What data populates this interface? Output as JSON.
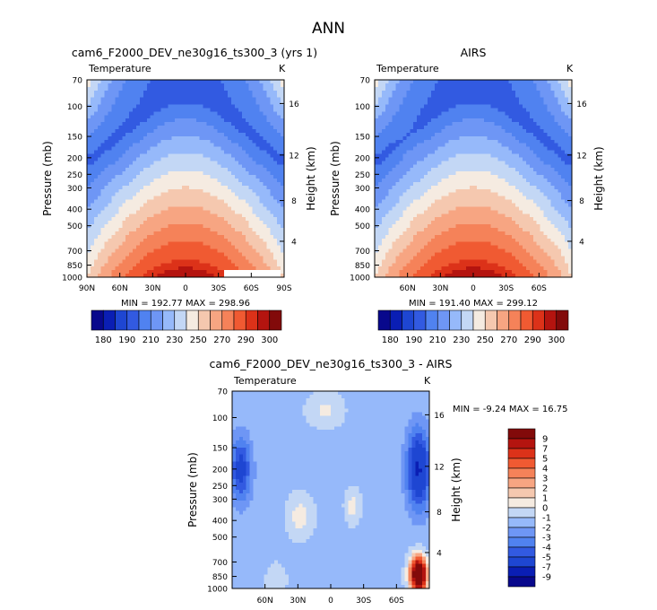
{
  "page": {
    "main_title": "ANN"
  },
  "chart_data": [
    {
      "type": "heatmap",
      "id": "model",
      "title": "cam6_F2000_DEV_ne30g16_ts300_3 (yrs 1)",
      "left_string": "Temperature",
      "units": "K",
      "ylabel": "Pressure (mb)",
      "right_ylabel": "Height (km)",
      "pressure_ticks": [
        70,
        100,
        150,
        200,
        250,
        300,
        400,
        500,
        700,
        850,
        1000
      ],
      "height_ticks": [
        4,
        8,
        12,
        16
      ],
      "lat_ticks": [
        90,
        60,
        30,
        0,
        -30,
        -60,
        -90
      ],
      "lat_tick_labels": [
        "90N",
        "60N",
        "30N",
        "0",
        "30S",
        "60S",
        "90S"
      ],
      "xlim": [
        90,
        -90
      ],
      "ylim": [
        1000,
        70
      ],
      "y_scale": "log",
      "field": "temperature",
      "missing_lower_right": true,
      "stats": "MIN = 192.77   MAX = 298.96",
      "colorbar": {
        "orientation": "horizontal",
        "labels": [
          "180",
          "190",
          "210",
          "230",
          "250",
          "270",
          "290",
          "300"
        ],
        "levels": [
          180,
          185,
          190,
          200,
          210,
          220,
          230,
          240,
          250,
          260,
          270,
          280,
          290,
          295,
          300
        ],
        "colors": [
          "#08088c",
          "#0a1eb4",
          "#1e46d2",
          "#325ae1",
          "#5082f0",
          "#6e96f5",
          "#96b9fa",
          "#c3d7f5",
          "#f5ebe1",
          "#f5c8af",
          "#f7a582",
          "#f58259",
          "#f05a32",
          "#dc3219",
          "#b4140f",
          "#820a0a"
        ]
      }
    },
    {
      "type": "heatmap",
      "id": "obs",
      "title": "AIRS",
      "left_string": "Temperature",
      "units": "K",
      "ylabel": "Pressure (mb)",
      "right_ylabel": "Height (km)",
      "pressure_ticks": [
        70,
        100,
        150,
        200,
        250,
        300,
        400,
        500,
        700,
        850,
        1000
      ],
      "height_ticks": [
        4,
        8,
        12,
        16
      ],
      "lat_ticks": [
        60,
        30,
        0,
        -30,
        -60
      ],
      "lat_tick_labels": [
        "60N",
        "30N",
        "0",
        "30S",
        "60S"
      ],
      "xlim": [
        90,
        -90
      ],
      "ylim": [
        1000,
        70
      ],
      "y_scale": "log",
      "field": "temperature",
      "missing_lower_right": false,
      "stats": "MIN = 191.40   MAX = 299.12",
      "colorbar": {
        "orientation": "horizontal",
        "labels": [
          "180",
          "190",
          "210",
          "230",
          "250",
          "270",
          "290",
          "300"
        ],
        "levels": [
          180,
          185,
          190,
          200,
          210,
          220,
          230,
          240,
          250,
          260,
          270,
          280,
          290,
          295,
          300
        ],
        "colors": [
          "#08088c",
          "#0a1eb4",
          "#1e46d2",
          "#325ae1",
          "#5082f0",
          "#6e96f5",
          "#96b9fa",
          "#c3d7f5",
          "#f5ebe1",
          "#f5c8af",
          "#f7a582",
          "#f58259",
          "#f05a32",
          "#dc3219",
          "#b4140f",
          "#820a0a"
        ]
      }
    },
    {
      "type": "heatmap",
      "id": "diff",
      "title": "cam6_F2000_DEV_ne30g16_ts300_3 - AIRS",
      "left_string": "Temperature",
      "units": "K",
      "ylabel": "Pressure (mb)",
      "right_ylabel": "Height (km)",
      "pressure_ticks": [
        70,
        100,
        150,
        200,
        250,
        300,
        400,
        500,
        700,
        850,
        1000
      ],
      "height_ticks": [
        4,
        8,
        12,
        16
      ],
      "lat_ticks": [
        60,
        30,
        0,
        -30,
        -60
      ],
      "lat_tick_labels": [
        "60N",
        "30N",
        "0",
        "30S",
        "60S"
      ],
      "xlim": [
        90,
        -90
      ],
      "ylim": [
        1000,
        70
      ],
      "y_scale": "log",
      "field": "difference",
      "stats": "MIN =   -9.24   MAX =   16.75",
      "colorbar": {
        "orientation": "vertical",
        "labels": [
          "9",
          "7",
          "5",
          "4",
          "3",
          "2",
          "1",
          "0",
          "-1",
          "-2",
          "-3",
          "-4",
          "-5",
          "-7",
          "-9"
        ],
        "levels": [
          -9,
          -7,
          -5,
          -4,
          -3,
          -2,
          -1,
          0,
          1,
          2,
          3,
          4,
          5,
          7,
          9
        ],
        "colors": [
          "#08088c",
          "#0a1eb4",
          "#1e46d2",
          "#325ae1",
          "#5082f0",
          "#6e96f5",
          "#96b9fa",
          "#c3d7f5",
          "#f5ebe1",
          "#f5c8af",
          "#f7a582",
          "#f58259",
          "#f05a32",
          "#dc3219",
          "#b4140f",
          "#820a0a"
        ]
      }
    }
  ]
}
